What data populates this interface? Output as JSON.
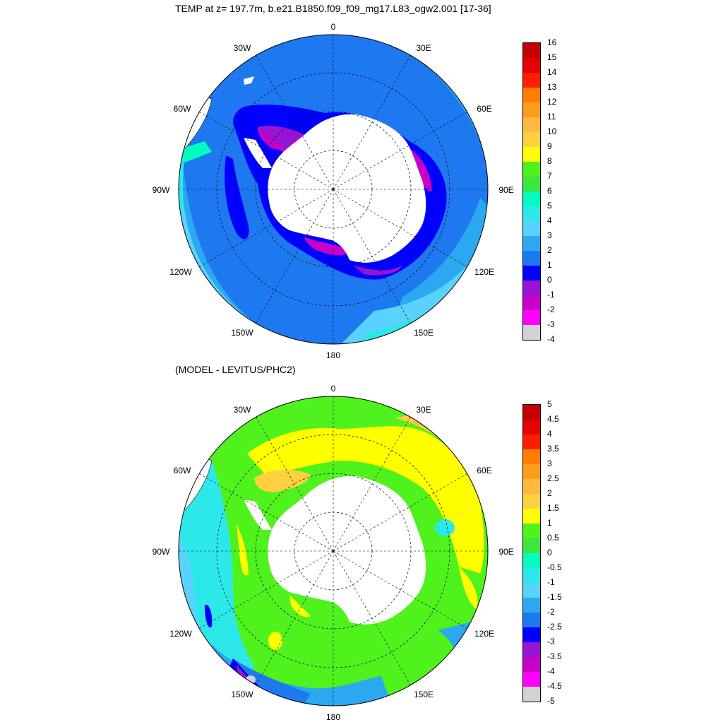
{
  "titles": {
    "top": "TEMP at z= 197.7m, b.e21.B1850.f09_f09_mg17.L83_ogw2.001 [17-36]",
    "bottom": "(MODEL - LEVITUS/PHC2)"
  },
  "longitude_labels": {
    "lon_0": "0",
    "lon_30e": "30E",
    "lon_60e": "60E",
    "lon_90e": "90E",
    "lon_120e": "120E",
    "lon_150e": "150E",
    "lon_180": "180",
    "lon_150w": "150W",
    "lon_120w": "120W",
    "lon_90w": "90W",
    "lon_60w": "60W",
    "lon_30w": "30W"
  },
  "colorbar_top": {
    "labels": [
      "16",
      "15",
      "14",
      "13",
      "12",
      "11",
      "10",
      "9",
      "8",
      "7",
      "6",
      "5",
      "4",
      "3",
      "2",
      "1",
      "0",
      "-1",
      "-2",
      "-3",
      "-4"
    ],
    "colors": [
      "#c40000",
      "#e60000",
      "#ff1e00",
      "#ff7d00",
      "#ff9c1c",
      "#ffb840",
      "#ffd040",
      "#ffff00",
      "#4ff21c",
      "#3ce63c",
      "#00ffbe",
      "#2de8e8",
      "#5ad2ff",
      "#2aa8f0",
      "#1e78f0",
      "#0000ff",
      "#9614d2",
      "#c800c8",
      "#ff00ff",
      "#d2d2d2",
      "#707070"
    ]
  },
  "colorbar_bottom": {
    "labels": [
      "5",
      "4.5",
      "4",
      "3.5",
      "3",
      "2.5",
      "2",
      "1.5",
      "1",
      "0.5",
      "0",
      "-0.5",
      "-1",
      "-1.5",
      "-2",
      "-2.5",
      "-3",
      "-3.5",
      "-4",
      "-4.5",
      "-5"
    ],
    "colors": [
      "#c40000",
      "#e60000",
      "#ff1e00",
      "#ff7d00",
      "#ff9c1c",
      "#ffb840",
      "#ffd040",
      "#ffff00",
      "#4ff21c",
      "#3ce63c",
      "#00ffbe",
      "#2de8e8",
      "#5ad2ff",
      "#2aa8f0",
      "#1e78f0",
      "#0000ff",
      "#9614d2",
      "#c800c8",
      "#ff00ff",
      "#d2d2d2",
      "#707070"
    ]
  }
}
